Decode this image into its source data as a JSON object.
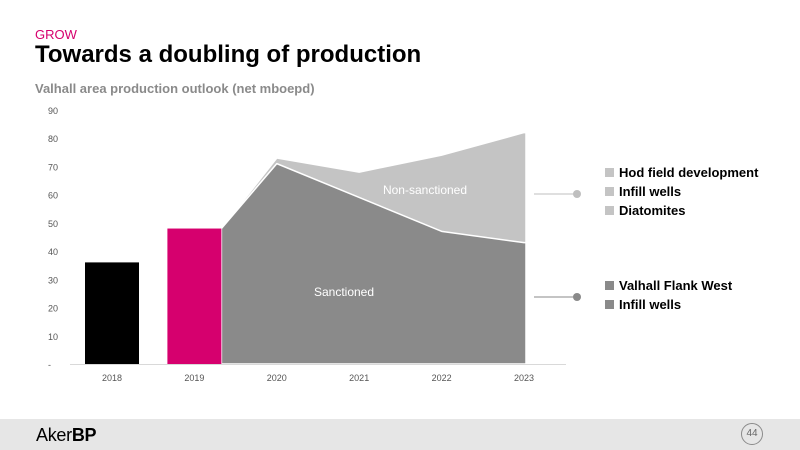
{
  "header": {
    "section": "GROW",
    "title": "Towards a doubling of production"
  },
  "chart_data": {
    "type": "bar",
    "title": "Valhall area production outlook (net mboepd)",
    "categories": [
      "2018",
      "2019",
      "2020",
      "2021",
      "2022",
      "2023"
    ],
    "ylim": [
      0,
      90
    ],
    "yticks": [
      0,
      10,
      20,
      30,
      40,
      50,
      60,
      70,
      80,
      90
    ],
    "ytick_labels": [
      "-",
      "10",
      "20",
      "30",
      "40",
      "50",
      "60",
      "70",
      "80",
      "90"
    ],
    "grid": false,
    "bars": [
      {
        "category": "2018",
        "value": 36,
        "color": "#000000"
      },
      {
        "category": "2019",
        "value": 48,
        "color": "#d6006e"
      }
    ],
    "areas": [
      {
        "label": "Sanctioned",
        "color": "#8a8a8a",
        "x": [
          "2019",
          "2020",
          "2021",
          "2022",
          "2023"
        ],
        "values": [
          48,
          71,
          59,
          47,
          43
        ]
      },
      {
        "label": "Non-sanctioned",
        "color": "#c4c4c4",
        "x": [
          "2019",
          "2020",
          "2021",
          "2022",
          "2023"
        ],
        "values": [
          48,
          73,
          68,
          74,
          82
        ]
      }
    ]
  },
  "legend": {
    "upper": {
      "items": [
        "Hod field development",
        "Infill wells",
        "Diatomites"
      ],
      "color": "#c4c4c4"
    },
    "lower": {
      "items": [
        "Valhall Flank West",
        "Infill wells"
      ],
      "color": "#8a8a8a"
    }
  },
  "footer": {
    "logo_light": "Aker",
    "logo_bold": "BP",
    "page": "44"
  }
}
